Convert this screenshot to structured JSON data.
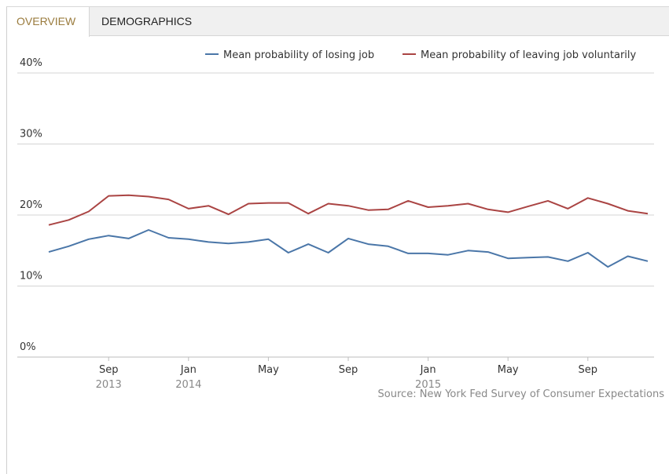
{
  "tabs": [
    {
      "label": "OVERVIEW",
      "active": true
    },
    {
      "label": "DEMOGRAPHICS",
      "active": false
    }
  ],
  "chart_data": {
    "type": "line",
    "title": "",
    "xlabel": "",
    "ylabel": "",
    "ylim": [
      0,
      40
    ],
    "y_ticks": [
      "0%",
      "10%",
      "20%",
      "30%",
      "40%"
    ],
    "y_tick_values": [
      0,
      10,
      20,
      30,
      40
    ],
    "grid": true,
    "legend_position": "top-right",
    "x_ticks": [
      {
        "label": "Sep",
        "sub": "2013",
        "month": "2013-09"
      },
      {
        "label": "Jan",
        "sub": "2014",
        "month": "2014-01"
      },
      {
        "label": "May",
        "sub": "",
        "month": "2014-05"
      },
      {
        "label": "Sep",
        "sub": "",
        "month": "2014-09"
      },
      {
        "label": "Jan",
        "sub": "2015",
        "month": "2015-01"
      },
      {
        "label": "May",
        "sub": "",
        "month": "2015-05"
      },
      {
        "label": "Sep",
        "sub": "",
        "month": "2015-09"
      }
    ],
    "x": [
      "2013-06",
      "2013-07",
      "2013-08",
      "2013-09",
      "2013-10",
      "2013-11",
      "2013-12",
      "2014-01",
      "2014-02",
      "2014-03",
      "2014-04",
      "2014-05",
      "2014-06",
      "2014-07",
      "2014-08",
      "2014-09",
      "2014-10",
      "2014-11",
      "2014-12",
      "2015-01",
      "2015-02",
      "2015-03",
      "2015-04",
      "2015-05",
      "2015-06",
      "2015-07",
      "2015-08",
      "2015-09",
      "2015-10",
      "2015-11",
      "2015-12"
    ],
    "series": [
      {
        "name": "Mean probability of losing job",
        "color": "#4a76a8",
        "values": [
          14.8,
          15.6,
          16.6,
          17.1,
          16.7,
          17.9,
          16.8,
          16.6,
          16.2,
          16.0,
          16.2,
          16.6,
          14.7,
          15.9,
          14.7,
          16.7,
          15.9,
          15.6,
          14.6,
          14.6,
          14.4,
          15.0,
          14.8,
          13.9,
          14.0,
          14.1,
          13.5,
          14.7,
          12.7,
          14.2,
          13.5
        ]
      },
      {
        "name": "Mean probability of leaving job voluntarily",
        "color": "#aa4443",
        "values": [
          18.6,
          19.3,
          20.5,
          22.7,
          22.8,
          22.6,
          22.2,
          20.9,
          21.3,
          20.1,
          21.6,
          21.7,
          21.7,
          20.2,
          21.6,
          21.3,
          20.7,
          20.8,
          22.0,
          21.1,
          21.3,
          21.6,
          20.8,
          20.4,
          21.2,
          22.0,
          20.9,
          22.4,
          21.6,
          20.6,
          20.2
        ]
      }
    ],
    "source": "Source: New York Fed Survey of Consumer Expectations"
  }
}
